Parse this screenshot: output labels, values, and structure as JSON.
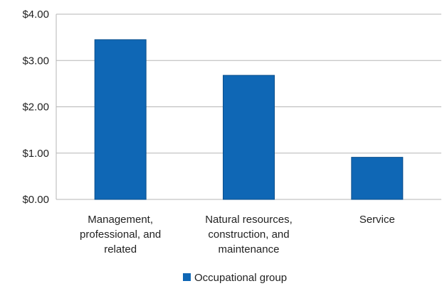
{
  "chart_data": {
    "type": "bar",
    "categories": [
      [
        "Management,",
        "professional, and",
        "related"
      ],
      [
        "Natural resources,",
        "construction, and",
        "maintenance"
      ],
      [
        "Service"
      ]
    ],
    "series": [
      {
        "name": "Occupational group",
        "values": [
          3.45,
          2.68,
          0.91
        ]
      }
    ],
    "y_ticks": [
      "$0.00",
      "$1.00",
      "$2.00",
      "$3.00",
      "$4.00"
    ],
    "ylim": [
      0,
      4
    ],
    "grid": true,
    "legend": "bottom",
    "bar_color": "#0f67b5",
    "bar_edge_color": "#0b4f8c",
    "grid_color": "#b5b5b5"
  }
}
